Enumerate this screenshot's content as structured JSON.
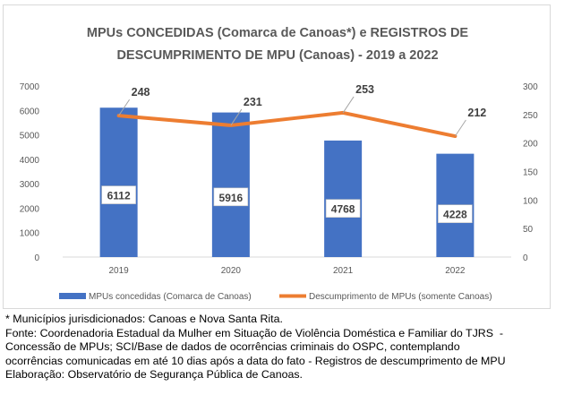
{
  "chart_data": {
    "type": "bar",
    "title_lines": [
      "MPUs CONCEDIDAS (Comarca de Canoas*) e REGISTROS DE",
      "DESCUMPRIMENTO  DE MPU (Canoas) - 2019 a 2022"
    ],
    "categories": [
      "2019",
      "2020",
      "2021",
      "2022"
    ],
    "series": [
      {
        "name": "MPUs concedidas (Comarca de Canoas)",
        "type": "bar",
        "axis": "left",
        "values": [
          6112,
          5916,
          4768,
          4228
        ],
        "color": "#4472C4"
      },
      {
        "name": "Descumprimento de MPUs (somente Canoas)",
        "type": "line",
        "axis": "right",
        "values": [
          248,
          231,
          253,
          212
        ],
        "color": "#ED7D31"
      }
    ],
    "ylim_left": [
      0,
      7000
    ],
    "yticks_left": [
      "0",
      "1000",
      "2000",
      "3000",
      "4000",
      "5000",
      "6000",
      "7000"
    ],
    "ylim_right": [
      0,
      300
    ],
    "yticks_right": [
      "0",
      "50",
      "100",
      "150",
      "200",
      "250",
      "300"
    ],
    "grid": false,
    "legend_position": "bottom"
  },
  "notes": [
    "* Municípios jurisdicionados: Canoas e Nova Santa Rita.",
    "Fonte: Coordenadoria Estadual da Mulher em Situação de Violência Doméstica e Familiar do TJRS  -",
    "Concessão de MPUs; SCI/Base de dados de ocorrências criminais do OSPC, contemplando",
    "ocorrências comunicadas em até 10 dias após a data do fato - Registros de descumprimento de MPU",
    "Elaboração: Observatório de Segurança Pública de Canoas."
  ]
}
